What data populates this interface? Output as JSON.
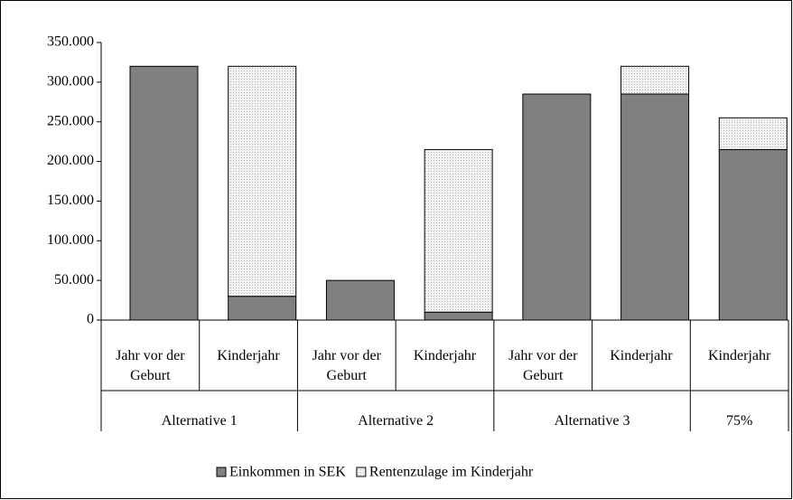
{
  "chart_data": {
    "type": "stacked_bar",
    "categories": [
      "Jahr vor der Geburt",
      "Kinderjahr",
      "Jahr vor der Geburt",
      "Kinderjahr",
      "Jahr vor der Geburt",
      "Kinderjahr",
      "Kinderjahr"
    ],
    "groups": [
      {
        "name": "Alternative 1",
        "span": 2
      },
      {
        "name": "Alternative 2",
        "span": 2
      },
      {
        "name": "Alternative 3",
        "span": 2
      },
      {
        "name": "75%",
        "span": 1
      }
    ],
    "series": [
      {
        "name": "Einkommen in SEK",
        "color": "#808080",
        "values": [
          320000,
          30000,
          50000,
          10000,
          285000,
          285000,
          215000
        ]
      },
      {
        "name": "Rentenzulage im Kinderjahr",
        "color": "#ececec",
        "values": [
          0,
          290000,
          0,
          205000,
          0,
          35000,
          40000
        ]
      }
    ],
    "ylim": [
      0,
      350000
    ],
    "yticks": [
      0,
      {
        "value": 50000,
        "label": "50.000"
      },
      {
        "value": 100000,
        "label": "100.000"
      },
      {
        "value": 150000,
        "label": "150.000"
      },
      {
        "value": 200000,
        "label": "200.000"
      },
      {
        "value": 250000,
        "label": "250.000"
      },
      {
        "value": 300000,
        "label": "300.000"
      },
      {
        "value": 350000,
        "label": "350.000"
      }
    ],
    "legend": "bottom"
  }
}
